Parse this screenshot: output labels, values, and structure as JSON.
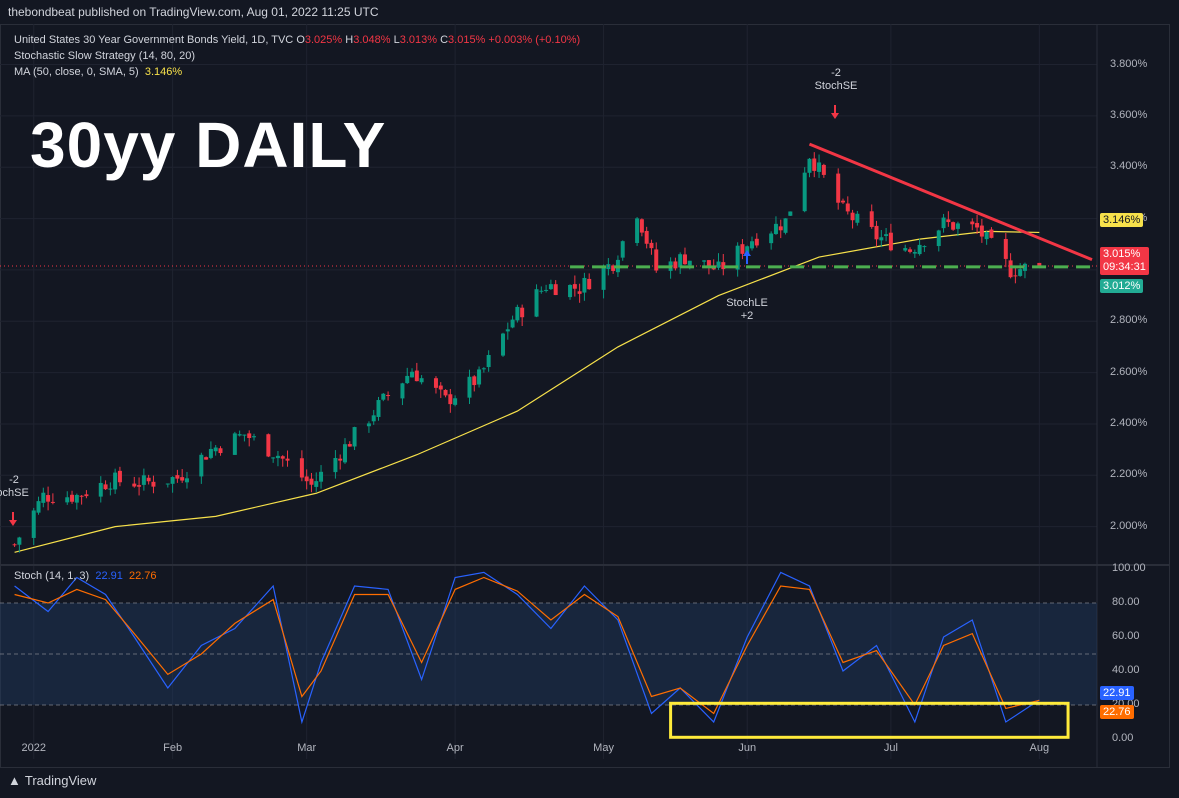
{
  "publisher": "thebondbeat published on TradingView.com, Aug 01, 2022 11:25 UTC",
  "legend": {
    "symbol": "United States 30 Year Government Bonds Yield, 1D, TVC",
    "o_label": "O",
    "o_value": "3.025%",
    "h_label": "H",
    "h_value": "3.048%",
    "l_label": "L",
    "l_value": "3.013%",
    "c_label": "C",
    "c_value": "3.015%",
    "change": "+0.003% (+0.10%)",
    "strategy": "Stochastic Slow Strategy (14, 80, 20)",
    "ma_label": "MA (50, close, 0, SMA, 5)",
    "ma_value": "3.146%"
  },
  "overlay_title": "30yy DAILY",
  "colors": {
    "up": "#089981",
    "down": "#f23645",
    "ma": "#f7e14b",
    "trend": "#f23645",
    "support": "#4caf50",
    "stoch_k": "#2962ff",
    "stoch_d": "#ff6d00",
    "box": "#ffeb3b",
    "bg": "#131722"
  },
  "price_axis": {
    "ticks": [
      "3.800%",
      "3.600%",
      "3.400%",
      "3.200%",
      "3.000%",
      "2.800%",
      "2.600%",
      "2.400%",
      "2.200%",
      "2.000%"
    ],
    "last_price": "3.015%",
    "countdown": "09:34:31",
    "ma_tag": "3.146%",
    "support_tag": "3.012%"
  },
  "stoch_axis": {
    "ticks": [
      "100.00",
      "80.00",
      "60.00",
      "40.00",
      "20.00",
      "0.00"
    ],
    "k_tag": "22.91",
    "d_tag": "22.76"
  },
  "stoch_legend": {
    "label": "Stoch (14, 1, 3)",
    "k": "22.91",
    "d": "22.76"
  },
  "x_axis": [
    "2022",
    "Feb",
    "Mar",
    "Apr",
    "May",
    "Jun",
    "Jul",
    "Aug"
  ],
  "signals": [
    {
      "type": "StochSE",
      "count": "-2",
      "label": "StochSE",
      "date": "2022-01-03"
    },
    {
      "type": "StochLE",
      "count": "+2",
      "label": "StochLE",
      "date": "2022-05-27"
    },
    {
      "type": "StochSE",
      "count": "-2",
      "label": "StochSE",
      "date": "2022-06-14"
    }
  ],
  "branding": "TradingView",
  "chart_data": {
    "type": "line",
    "title": "United States 30 Year Government Bonds Yield, 1D, TVC",
    "x_range": [
      "2021-12-28",
      "2022-08-12"
    ],
    "ylim": [
      1.87,
      3.88
    ],
    "grid": true,
    "series": [
      {
        "name": "United States 30 Year Government Bonds Yield",
        "x": [
          "2021-12-30",
          "2022-01-05",
          "2022-01-12",
          "2022-01-19",
          "2022-01-26",
          "2022-02-02",
          "2022-02-09",
          "2022-02-16",
          "2022-02-23",
          "2022-03-02",
          "2022-03-09",
          "2022-03-16",
          "2022-03-23",
          "2022-03-30",
          "2022-04-06",
          "2022-04-13",
          "2022-04-20",
          "2022-04-27",
          "2022-05-04",
          "2022-05-09",
          "2022-05-13",
          "2022-05-19",
          "2022-05-26",
          "2022-06-02",
          "2022-06-09",
          "2022-06-14",
          "2022-06-21",
          "2022-06-28",
          "2022-07-05",
          "2022-07-12",
          "2022-07-19",
          "2022-07-26",
          "2022-08-01"
        ],
        "values": [
          1.93,
          2.12,
          2.12,
          2.18,
          2.17,
          2.19,
          2.3,
          2.36,
          2.28,
          2.16,
          2.31,
          2.47,
          2.61,
          2.49,
          2.58,
          2.81,
          2.94,
          2.93,
          3.03,
          3.23,
          3.0,
          3.05,
          3.0,
          3.12,
          3.19,
          3.45,
          3.23,
          3.13,
          3.08,
          3.18,
          3.16,
          3.0,
          3.015
        ]
      },
      {
        "name": "MA (50, close, 0, SMA, 5)",
        "x": [
          "2021-12-30",
          "2022-01-20",
          "2022-02-10",
          "2022-03-03",
          "2022-03-24",
          "2022-04-14",
          "2022-05-05",
          "2022-05-26",
          "2022-06-16",
          "2022-07-07",
          "2022-07-21",
          "2022-08-01"
        ],
        "values": [
          1.9,
          2.0,
          2.04,
          2.13,
          2.28,
          2.45,
          2.7,
          2.9,
          3.05,
          3.12,
          3.15,
          3.146
        ]
      }
    ],
    "annotations": [
      {
        "type": "trendline",
        "from": [
          "2022-06-14",
          3.49
        ],
        "to": [
          "2022-08-12",
          3.04
        ]
      },
      {
        "type": "horizontal",
        "y": 3.012,
        "from": "2022-04-25",
        "to": "2022-08-12"
      }
    ],
    "stochastic": {
      "name": "Stoch (14, 1, 3)",
      "ylim": [
        0,
        100
      ],
      "bands": [
        20,
        50,
        80
      ],
      "x": [
        "2021-12-30",
        "2022-01-06",
        "2022-01-12",
        "2022-01-18",
        "2022-01-24",
        "2022-01-31",
        "2022-02-07",
        "2022-02-14",
        "2022-02-22",
        "2022-02-28",
        "2022-03-04",
        "2022-03-11",
        "2022-03-18",
        "2022-03-25",
        "2022-04-01",
        "2022-04-07",
        "2022-04-14",
        "2022-04-21",
        "2022-04-28",
        "2022-05-05",
        "2022-05-12",
        "2022-05-18",
        "2022-05-25",
        "2022-06-01",
        "2022-06-08",
        "2022-06-14",
        "2022-06-21",
        "2022-06-28",
        "2022-07-06",
        "2022-07-12",
        "2022-07-18",
        "2022-07-25",
        "2022-08-01"
      ],
      "k": [
        90,
        75,
        95,
        85,
        60,
        30,
        55,
        65,
        90,
        10,
        45,
        90,
        88,
        35,
        95,
        98,
        85,
        65,
        90,
        70,
        15,
        30,
        10,
        60,
        98,
        90,
        40,
        55,
        10,
        60,
        70,
        10,
        22.91
      ],
      "d": [
        85,
        80,
        88,
        82,
        62,
        38,
        50,
        68,
        82,
        25,
        40,
        85,
        85,
        45,
        88,
        95,
        87,
        70,
        85,
        72,
        25,
        30,
        15,
        55,
        90,
        88,
        45,
        52,
        20,
        55,
        62,
        18,
        22.76
      ]
    }
  }
}
